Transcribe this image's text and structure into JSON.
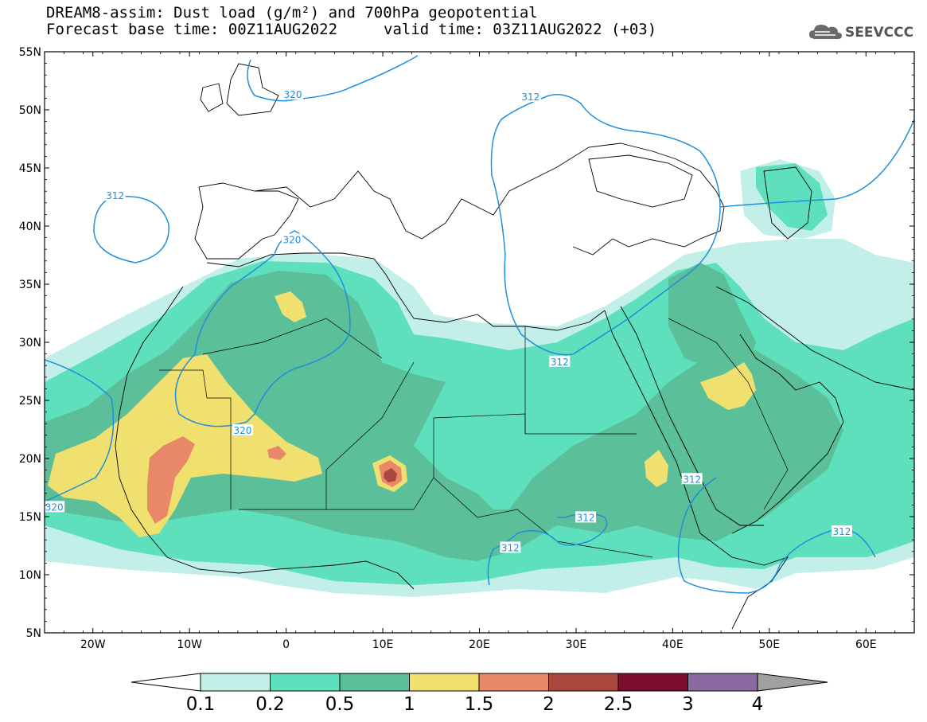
{
  "header": {
    "line1": "DREAM8-assim: Dust load (g/m²) and 700hPa geopotential",
    "line2_left": "Forecast base time: 00Z11AUG2022",
    "line2_right": "valid time: 03Z11AUG2022 (+03)"
  },
  "logo": {
    "text": "SEEVCCC",
    "icon": "cloud-icon"
  },
  "map": {
    "projection": "equirectangular",
    "lon_range": [
      -25,
      65
    ],
    "lat_range": [
      5,
      55
    ],
    "lat_labels": [
      "55N",
      "50N",
      "45N",
      "40N",
      "35N",
      "30N",
      "25N",
      "20N",
      "15N",
      "10N",
      "5N"
    ],
    "lon_labels": [
      "20W",
      "10W",
      "0",
      "10E",
      "20E",
      "30E",
      "40E",
      "50E",
      "60E"
    ],
    "contour_color": "#1f8fdc",
    "contour_labels": [
      {
        "text": "320",
        "lon": -24,
        "lat": 15.8
      },
      {
        "text": "320",
        "lon": -4.5,
        "lat": 22.4
      },
      {
        "text": "320",
        "lon": 0.6,
        "lat": 38.8
      },
      {
        "text": "320",
        "lon": 0.7,
        "lat": 51.3
      },
      {
        "text": "312",
        "lon": -17.7,
        "lat": 42.6
      },
      {
        "text": "312",
        "lon": 25.3,
        "lat": 51.1
      },
      {
        "text": "312",
        "lon": 28.3,
        "lat": 28.3
      },
      {
        "text": "312",
        "lon": 42.0,
        "lat": 18.2
      },
      {
        "text": "312",
        "lon": 31.0,
        "lat": 14.9
      },
      {
        "text": "312",
        "lon": 23.2,
        "lat": 12.3
      },
      {
        "text": "312",
        "lon": 57.5,
        "lat": 13.7
      }
    ]
  },
  "colorbar": {
    "labels": [
      "0.1",
      "0.2",
      "0.5",
      "1",
      "1.5",
      "2",
      "2.5",
      "3",
      "4"
    ],
    "colors": [
      "#c3efe9",
      "#5fe0bd",
      "#5bbf99",
      "#f0e070",
      "#e88868",
      "#a8483d",
      "#7a0e2c",
      "#8a6aa0",
      "#a0a0a0"
    ],
    "under_color": "#ffffff"
  },
  "dust_levels": {
    "c1": "#c3efe9",
    "c2": "#5fe0bd",
    "c3": "#5bbf99",
    "c4": "#f0e070",
    "c5": "#e88868",
    "c6": "#a8483d"
  }
}
